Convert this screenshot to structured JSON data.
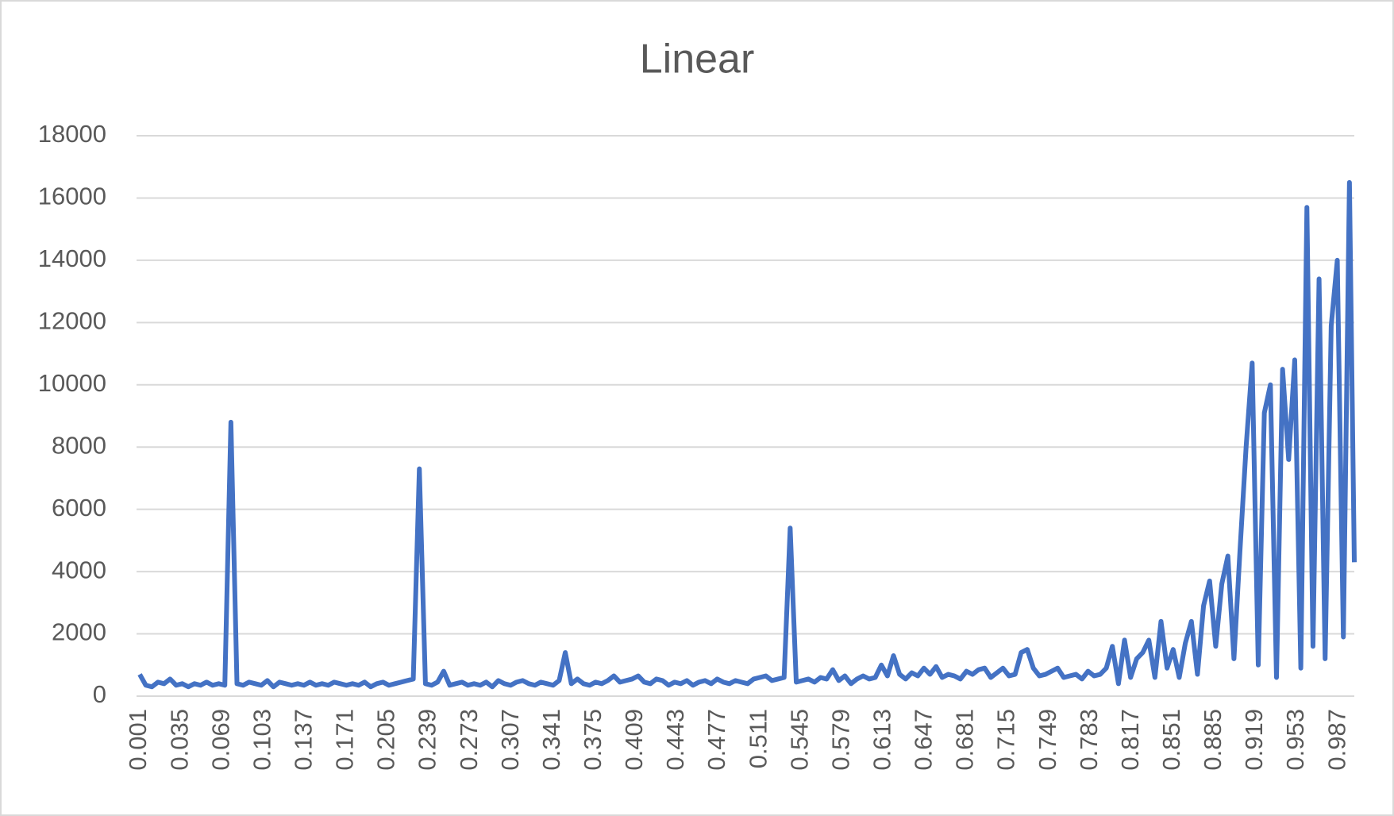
{
  "chart_data": {
    "type": "line",
    "title": "Linear",
    "x": [
      0.001,
      0.006,
      0.011,
      0.016,
      0.021,
      0.026,
      0.031,
      0.036,
      0.041,
      0.046,
      0.051,
      0.056,
      0.061,
      0.066,
      0.071,
      0.076,
      0.081,
      0.086,
      0.091,
      0.096,
      0.101,
      0.106,
      0.111,
      0.116,
      0.121,
      0.126,
      0.131,
      0.136,
      0.141,
      0.146,
      0.151,
      0.156,
      0.161,
      0.166,
      0.171,
      0.176,
      0.181,
      0.186,
      0.191,
      0.196,
      0.201,
      0.206,
      0.211,
      0.216,
      0.221,
      0.226,
      0.231,
      0.236,
      0.241,
      0.246,
      0.251,
      0.256,
      0.261,
      0.266,
      0.271,
      0.276,
      0.281,
      0.286,
      0.291,
      0.296,
      0.301,
      0.306,
      0.311,
      0.316,
      0.321,
      0.326,
      0.331,
      0.336,
      0.341,
      0.346,
      0.351,
      0.356,
      0.361,
      0.366,
      0.371,
      0.376,
      0.381,
      0.386,
      0.391,
      0.396,
      0.401,
      0.406,
      0.411,
      0.416,
      0.421,
      0.426,
      0.431,
      0.436,
      0.441,
      0.446,
      0.451,
      0.456,
      0.461,
      0.466,
      0.471,
      0.476,
      0.481,
      0.486,
      0.491,
      0.496,
      0.501,
      0.506,
      0.511,
      0.516,
      0.521,
      0.526,
      0.531,
      0.536,
      0.541,
      0.546,
      0.551,
      0.556,
      0.561,
      0.566,
      0.571,
      0.576,
      0.581,
      0.586,
      0.591,
      0.596,
      0.601,
      0.606,
      0.611,
      0.616,
      0.621,
      0.626,
      0.631,
      0.636,
      0.641,
      0.646,
      0.651,
      0.656,
      0.661,
      0.666,
      0.671,
      0.676,
      0.681,
      0.686,
      0.691,
      0.696,
      0.701,
      0.706,
      0.711,
      0.716,
      0.721,
      0.726,
      0.731,
      0.736,
      0.741,
      0.746,
      0.751,
      0.756,
      0.761,
      0.766,
      0.771,
      0.776,
      0.781,
      0.786,
      0.791,
      0.796,
      0.801,
      0.806,
      0.811,
      0.816,
      0.821,
      0.826,
      0.831,
      0.836,
      0.841,
      0.846,
      0.851,
      0.856,
      0.861,
      0.866,
      0.871,
      0.876,
      0.881,
      0.886,
      0.891,
      0.896,
      0.901,
      0.906,
      0.911,
      0.916,
      0.921,
      0.926,
      0.931,
      0.936,
      0.941,
      0.946,
      0.951,
      0.956,
      0.961,
      0.966,
      0.971,
      0.976,
      0.981,
      0.986,
      0.991,
      0.996,
      1.0
    ],
    "series": [
      {
        "color": "#4472c4",
        "values": [
          700,
          350,
          300,
          450,
          400,
          550,
          350,
          400,
          300,
          400,
          350,
          450,
          350,
          400,
          350,
          8800,
          400,
          350,
          450,
          400,
          350,
          500,
          300,
          450,
          400,
          350,
          400,
          350,
          450,
          350,
          400,
          350,
          450,
          400,
          350,
          400,
          350,
          450,
          300,
          400,
          450,
          350,
          400,
          450,
          500,
          550,
          7300,
          400,
          350,
          450,
          800,
          350,
          400,
          450,
          350,
          400,
          350,
          450,
          300,
          500,
          400,
          350,
          450,
          500,
          400,
          350,
          450,
          400,
          350,
          500,
          1400,
          400,
          550,
          400,
          350,
          450,
          400,
          500,
          650,
          450,
          500,
          550,
          650,
          450,
          400,
          550,
          500,
          350,
          450,
          400,
          500,
          350,
          450,
          500,
          400,
          550,
          450,
          400,
          500,
          450,
          400,
          550,
          600,
          650,
          500,
          550,
          600,
          5400,
          450,
          500,
          550,
          450,
          600,
          550,
          850,
          500,
          650,
          400,
          550,
          650,
          550,
          600,
          1000,
          650,
          1300,
          700,
          550,
          750,
          650,
          900,
          700,
          950,
          600,
          700,
          650,
          550,
          800,
          700,
          850,
          900,
          600,
          750,
          900,
          650,
          700,
          1400,
          1500,
          900,
          650,
          700,
          800,
          900,
          600,
          650,
          700,
          550,
          800,
          650,
          700,
          900,
          1600,
          400,
          1800,
          600,
          1200,
          1400,
          1800,
          600,
          2400,
          900,
          1500,
          600,
          1700,
          2400,
          700,
          2900,
          3700,
          1600,
          3600,
          4500,
          1200,
          4700,
          8000,
          10700,
          1000,
          9100,
          10000,
          600,
          10500,
          7600,
          10800,
          900,
          15700,
          1600,
          13400,
          1200,
          11900,
          14000,
          1900,
          16500,
          4300
        ]
      }
    ],
    "xlim": [
      0.001,
      1.0
    ],
    "xticks": [
      0.001,
      0.035,
      0.069,
      0.103,
      0.137,
      0.171,
      0.205,
      0.239,
      0.273,
      0.307,
      0.341,
      0.375,
      0.409,
      0.443,
      0.477,
      0.511,
      0.545,
      0.579,
      0.613,
      0.647,
      0.681,
      0.715,
      0.749,
      0.783,
      0.817,
      0.851,
      0.885,
      0.919,
      0.953,
      0.987
    ],
    "ylim": [
      0,
      18000
    ],
    "yticks": [
      0,
      2000,
      4000,
      6000,
      8000,
      10000,
      12000,
      14000,
      16000,
      18000
    ],
    "grid": true
  }
}
